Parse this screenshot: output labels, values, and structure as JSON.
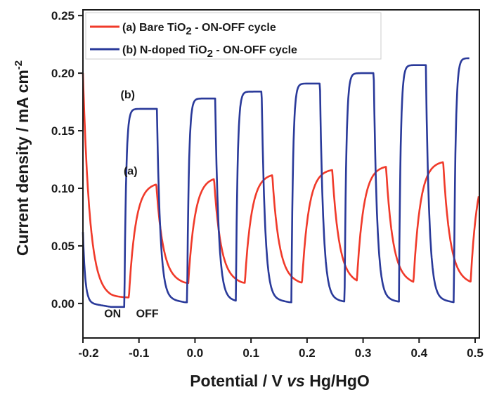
{
  "chart_data": {
    "type": "line",
    "title": "",
    "xlabel_parts": [
      "Potential / V ",
      "vs",
      " Hg/HgO"
    ],
    "ylabel_parts": [
      "Current density / mA cm",
      "-2"
    ],
    "xlim": [
      -0.2,
      0.5
    ],
    "ylim": [
      -0.03,
      0.255
    ],
    "xticks": [
      "-0.2",
      "-0.1",
      "0.0",
      "0.1",
      "0.2",
      "0.3",
      "0.4",
      "0.5"
    ],
    "xtick_values": [
      -0.2,
      -0.1,
      0.0,
      0.1,
      0.2,
      0.3,
      0.4,
      0.5
    ],
    "yticks": [
      "0.00",
      "0.05",
      "0.10",
      "0.15",
      "0.20",
      "0.25"
    ],
    "ytick_values": [
      0.0,
      0.05,
      0.1,
      0.15,
      0.2,
      0.25
    ],
    "grid": false,
    "legend_placement": "top-left",
    "series": [
      {
        "name_parts": [
          "(a) Bare TiO",
          "2",
          " - ON-OFF cycle"
        ],
        "color": "#f03a2a",
        "start_value": 0.2,
        "baseline": 0.009,
        "end_x": 0.507,
        "cycles": [
          {
            "on": -0.118,
            "off": -0.069,
            "peak": 0.105
          },
          {
            "on": -0.012,
            "off": 0.034,
            "peak": 0.11
          },
          {
            "on": 0.089,
            "off": 0.138,
            "peak": 0.113
          },
          {
            "on": 0.191,
            "off": 0.245,
            "peak": 0.117
          },
          {
            "on": 0.289,
            "off": 0.341,
            "peak": 0.12
          },
          {
            "on": 0.39,
            "off": 0.443,
            "peak": 0.124
          },
          {
            "on": 0.492,
            "off": null,
            "peak": 0.125
          }
        ]
      },
      {
        "name_parts": [
          "(b) N-doped TiO",
          "2",
          " - ON-OFF cycle"
        ],
        "color": "#2a3a9a",
        "start_value": 0.062,
        "baseline": 0.001,
        "end_x": 0.49,
        "cycles": [
          {
            "on": -0.126,
            "off": -0.068,
            "peak": 0.169
          },
          {
            "on": -0.014,
            "off": 0.036,
            "peak": 0.178
          },
          {
            "on": 0.073,
            "off": 0.119,
            "peak": 0.184
          },
          {
            "on": 0.172,
            "off": 0.223,
            "peak": 0.191
          },
          {
            "on": 0.267,
            "off": 0.319,
            "peak": 0.2
          },
          {
            "on": 0.364,
            "off": 0.412,
            "peak": 0.207
          },
          {
            "on": 0.462,
            "off": null,
            "peak": 0.213
          }
        ]
      }
    ],
    "annotations": [
      {
        "text": "(b)",
        "x": -0.12,
        "y": 0.178
      },
      {
        "text": "(a)",
        "x": -0.115,
        "y": 0.112
      },
      {
        "text": "ON",
        "x": -0.147,
        "y": -0.012
      },
      {
        "text": "OFF",
        "x": -0.085,
        "y": -0.012
      }
    ]
  }
}
